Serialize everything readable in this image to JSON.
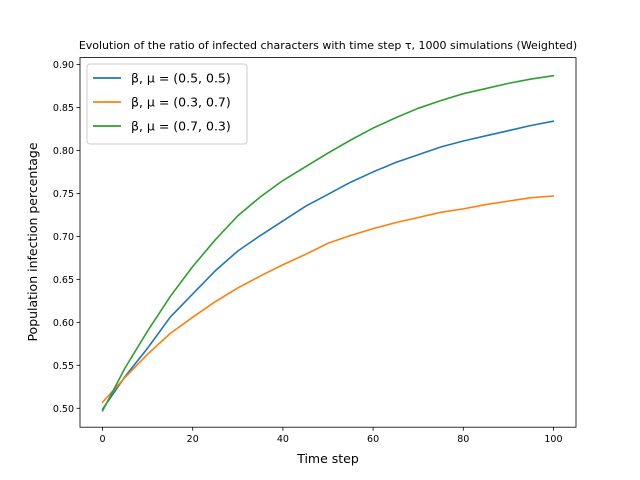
{
  "chart_data": {
    "type": "line",
    "title": "Evolution of the ratio of infected characters with time step τ, 1000 simulations (Weighted)",
    "xlabel": "Time step",
    "ylabel": "Population infection percentage",
    "xlim": [
      -5,
      105
    ],
    "ylim": [
      0.478,
      0.908
    ],
    "xticks": [
      0,
      20,
      40,
      60,
      80,
      100
    ],
    "yticks": [
      0.5,
      0.55,
      0.6,
      0.65,
      0.7,
      0.75,
      0.8,
      0.85,
      0.9
    ],
    "grid": false,
    "legend_position": "top-left",
    "x": [
      0,
      5,
      10,
      15,
      20,
      25,
      30,
      35,
      40,
      45,
      50,
      55,
      60,
      65,
      70,
      75,
      80,
      85,
      90,
      95,
      100
    ],
    "series": [
      {
        "name": "β, μ = (0.5, 0.5)",
        "color": "#1f77b4",
        "values": [
          0.499,
          0.537,
          0.57,
          0.606,
          0.633,
          0.66,
          0.683,
          0.701,
          0.718,
          0.735,
          0.749,
          0.763,
          0.775,
          0.786,
          0.795,
          0.804,
          0.811,
          0.817,
          0.823,
          0.829,
          0.834
        ]
      },
      {
        "name": "β, μ = (0.3, 0.7)",
        "color": "#ff7f0e",
        "values": [
          0.507,
          0.536,
          0.563,
          0.587,
          0.606,
          0.624,
          0.64,
          0.654,
          0.667,
          0.679,
          0.692,
          0.701,
          0.709,
          0.716,
          0.722,
          0.728,
          0.732,
          0.737,
          0.741,
          0.745,
          0.747
        ]
      },
      {
        "name": "β, μ = (0.7, 0.3)",
        "color": "#2ca02c",
        "values": [
          0.497,
          0.547,
          0.59,
          0.63,
          0.665,
          0.696,
          0.724,
          0.746,
          0.765,
          0.781,
          0.797,
          0.812,
          0.826,
          0.838,
          0.849,
          0.858,
          0.866,
          0.872,
          0.878,
          0.883,
          0.887
        ]
      }
    ]
  }
}
